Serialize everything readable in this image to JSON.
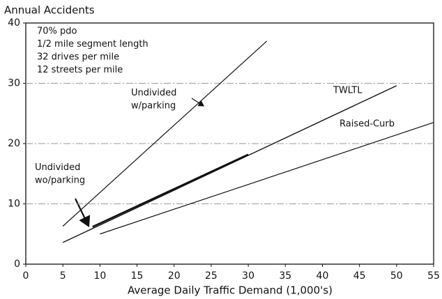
{
  "chart_data": {
    "type": "line",
    "title": "Annual Accidents",
    "x_label": "Average Daily Traffic Demand (1,000's)",
    "annotations": [
      "70% pdo",
      "1/2 mile segment length",
      "32 drives per mile",
      "12 streets per mile"
    ],
    "xlim": [
      0,
      55
    ],
    "xticks": [
      0,
      5,
      10,
      15,
      20,
      25,
      30,
      35,
      40,
      45,
      50,
      55
    ],
    "ylim": [
      0,
      40
    ],
    "yticks": [
      0,
      10,
      20,
      30,
      40
    ],
    "grid": true,
    "series": [
      {
        "name": "Undivided w/parking",
        "color": "#111111",
        "x": [
          5,
          32.5
        ],
        "values": [
          6.3,
          37
        ]
      },
      {
        "name": "TWLTL",
        "color": "#111111",
        "x": [
          5,
          50
        ],
        "values": [
          3.6,
          29.6
        ]
      },
      {
        "name": "Undivided wo/parking",
        "color": "#111111",
        "x": [
          9,
          30
        ],
        "values": [
          6.2,
          18.2
        ]
      },
      {
        "name": "Raised-Curb",
        "color": "#111111",
        "x": [
          10,
          55
        ],
        "values": [
          5.0,
          23.5
        ]
      }
    ]
  }
}
